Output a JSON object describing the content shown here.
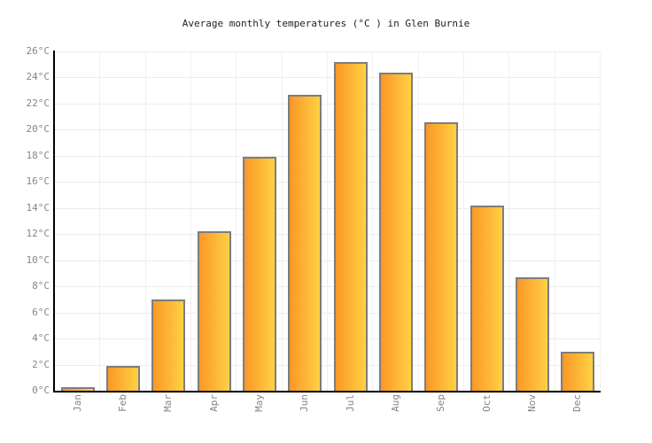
{
  "page": {
    "title": "Average monthly temperatures (°C ) in Glen Burnie"
  },
  "chart_data": {
    "type": "bar",
    "title": "Average monthly temperatures (°C ) in Glen Burnie",
    "categories": [
      "Jan",
      "Feb",
      "Mar",
      "Apr",
      "May",
      "Jun",
      "Jul",
      "Aug",
      "Sep",
      "Oct",
      "Nov",
      "Dec"
    ],
    "values": [
      0.3,
      1.9,
      7.0,
      12.2,
      17.9,
      22.7,
      25.2,
      24.4,
      20.6,
      14.2,
      8.7,
      3.0
    ],
    "unit": "°C",
    "xlabel": "",
    "ylabel": "",
    "ylim": [
      0,
      26
    ],
    "ytick_step": 2,
    "ytick_labels": [
      "0°C",
      "2°C",
      "4°C",
      "6°C",
      "8°C",
      "10°C",
      "12°C",
      "14°C",
      "16°C",
      "18°C",
      "20°C",
      "22°C",
      "24°C",
      "26°C"
    ],
    "grid": true,
    "legend": "none",
    "colors": {
      "bar_gradient_left": "#fa9827",
      "bar_gradient_right": "#ffd044",
      "bar_border": "#7d7d7d",
      "axis_line": "#000000",
      "gridline": "#ececec",
      "tick_label": "#858585",
      "title_text": "#222222",
      "background": "#ffffff"
    }
  }
}
